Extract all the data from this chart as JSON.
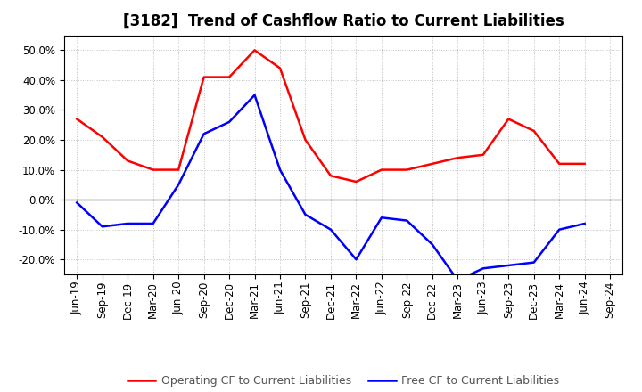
{
  "title": "[3182]  Trend of Cashflow Ratio to Current Liabilities",
  "x_labels": [
    "Jun-19",
    "Sep-19",
    "Dec-19",
    "Mar-20",
    "Jun-20",
    "Sep-20",
    "Dec-20",
    "Mar-21",
    "Jun-21",
    "Sep-21",
    "Dec-21",
    "Mar-22",
    "Jun-22",
    "Sep-22",
    "Dec-22",
    "Mar-23",
    "Jun-23",
    "Sep-23",
    "Dec-23",
    "Mar-24",
    "Jun-24",
    "Sep-24"
  ],
  "op_cf": [
    0.27,
    0.21,
    0.13,
    0.1,
    0.1,
    0.41,
    0.41,
    0.5,
    0.44,
    0.2,
    0.08,
    0.06,
    0.1,
    0.1,
    0.12,
    0.14,
    0.15,
    0.27,
    0.23,
    0.12,
    0.12,
    null
  ],
  "free_cf": [
    -0.01,
    -0.09,
    -0.08,
    -0.08,
    0.05,
    0.22,
    0.26,
    0.35,
    0.1,
    -0.05,
    -0.1,
    -0.2,
    -0.06,
    -0.07,
    -0.15,
    -0.27,
    -0.23,
    -0.22,
    -0.21,
    -0.1,
    -0.08,
    null
  ],
  "op_color": "#ff0000",
  "free_color": "#0000ff",
  "ylim": [
    -0.25,
    0.55
  ],
  "yticks": [
    -0.2,
    -0.1,
    0.0,
    0.1,
    0.2,
    0.3,
    0.4,
    0.5
  ],
  "bg_color": "#ffffff",
  "grid_color": "#c0c0c0",
  "legend_labels": [
    "Operating CF to Current Liabilities",
    "Free CF to Current Liabilities"
  ],
  "legend_text_color": "#555555",
  "title_fontsize": 12,
  "tick_fontsize": 8.5,
  "legend_fontsize": 9
}
